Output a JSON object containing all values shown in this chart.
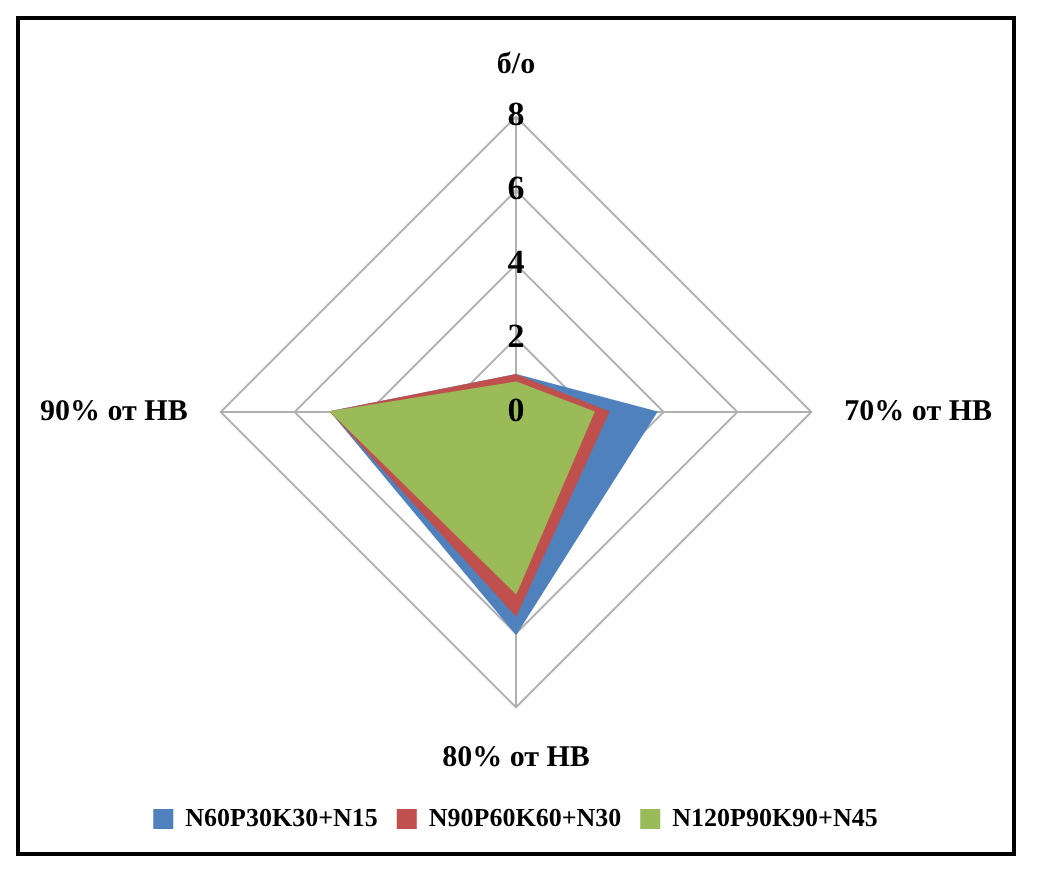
{
  "chart_data": {
    "type": "radar",
    "categories": [
      "б/о",
      "70% от НВ",
      "80% от НВ",
      "90% от НВ"
    ],
    "series": [
      {
        "name": "N60P30K30+N15",
        "color": "#4f81bd",
        "values": [
          1.0,
          3.8,
          6.0,
          5.0
        ]
      },
      {
        "name": "N90P60K60+N30",
        "color": "#c0504d",
        "values": [
          1.0,
          2.5,
          5.5,
          5.0
        ]
      },
      {
        "name": "N120P90K90+N45",
        "color": "#9bbb59",
        "values": [
          0.8,
          2.1,
          4.9,
          5.0
        ]
      }
    ],
    "ylim": [
      0,
      8
    ],
    "yticks": [
      0,
      2,
      4,
      6,
      8
    ],
    "grid": true,
    "legend": "bottom",
    "marker": "none"
  }
}
